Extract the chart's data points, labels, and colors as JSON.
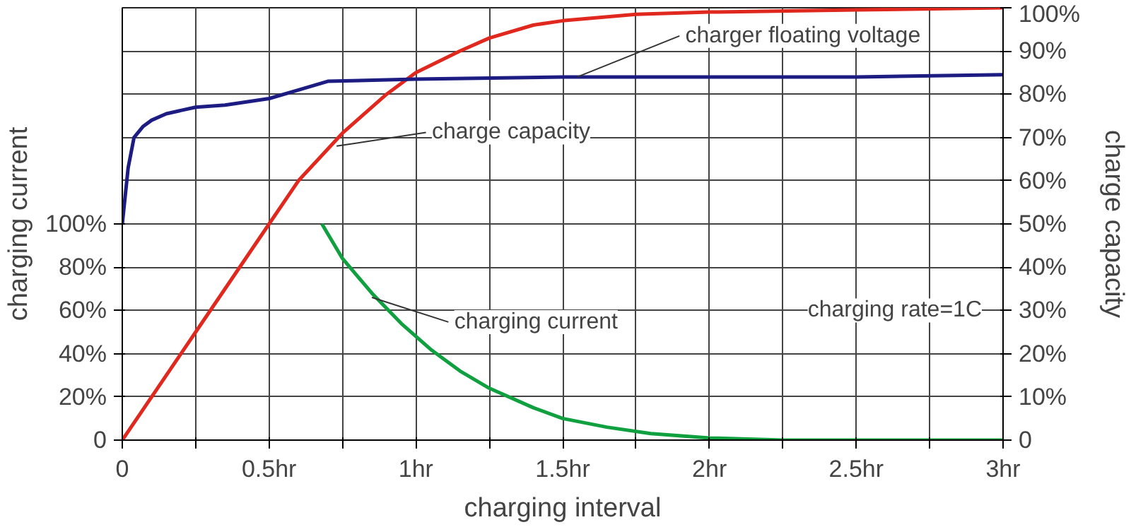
{
  "chart_data": {
    "type": "line",
    "xlabel": "charging interval",
    "ylabel": "charging current",
    "y2label": "charge capacity",
    "xlim": [
      0,
      3
    ],
    "xticks": [
      0,
      {
        "value": 0.25,
        "label": null
      },
      {
        "value": 0.5,
        "label": "0.5hr"
      },
      {
        "value": 0.75,
        "label": null
      },
      {
        "value": 1,
        "label": "1hr"
      },
      {
        "value": 1.25,
        "label": null
      },
      {
        "value": 1.5,
        "label": "1.5hr"
      },
      {
        "value": 1.75,
        "label": null
      },
      {
        "value": 2,
        "label": "2hr"
      },
      {
        "value": 2.25,
        "label": null
      },
      {
        "value": 2.5,
        "label": "2.5hr"
      },
      {
        "value": 2.75,
        "label": null
      },
      {
        "value": 3,
        "label": "3hr"
      }
    ],
    "ylim": [
      0,
      200
    ],
    "yticks": [
      0,
      {
        "value": 20,
        "label": "20%"
      },
      {
        "value": 40,
        "label": "40%"
      },
      {
        "value": 60,
        "label": "60%"
      },
      {
        "value": 80,
        "label": "80%"
      },
      {
        "value": 100,
        "label": "100%"
      }
    ],
    "y2lim": [
      0,
      100
    ],
    "y2ticks": [
      0,
      {
        "value": 10,
        "label": "10%"
      },
      {
        "value": 20,
        "label": "20%"
      },
      {
        "value": 30,
        "label": "30%"
      },
      {
        "value": 40,
        "label": "40%"
      },
      {
        "value": 50,
        "label": "50%"
      },
      {
        "value": 60,
        "label": "60%"
      },
      {
        "value": 70,
        "label": "70%"
      },
      {
        "value": 80,
        "label": "80%"
      },
      {
        "value": 90,
        "label": "90%"
      },
      {
        "value": 100,
        "label": "100%"
      }
    ],
    "series": [
      {
        "axis": "y2",
        "color": "#e0281e",
        "x": [
          0,
          0.25,
          0.5,
          0.6,
          0.75,
          0.9,
          1,
          1.15,
          1.25,
          1.4,
          1.5,
          1.75,
          2,
          2.5,
          3
        ],
        "values": [
          0,
          25,
          50,
          60,
          71,
          80,
          85,
          90,
          93,
          96,
          97,
          98.5,
          99,
          99.5,
          100
        ]
      },
      {
        "axis": "y2",
        "color": "#1c1c82",
        "x": [
          0,
          0.02,
          0.04,
          0.07,
          0.1,
          0.15,
          0.25,
          0.35,
          0.5,
          0.6,
          0.7,
          1,
          1.5,
          2,
          2.5,
          3
        ],
        "values": [
          50,
          63,
          70,
          72.5,
          74,
          75.5,
          77,
          77.5,
          79,
          81,
          83,
          83.5,
          84,
          84,
          84,
          84.5
        ]
      },
      {
        "axis": "y",
        "color": "#10a040",
        "x": [
          0.68,
          0.75,
          0.85,
          0.95,
          1.05,
          1.15,
          1.25,
          1.4,
          1.5,
          1.65,
          1.8,
          2,
          2.25,
          2.5,
          3
        ],
        "values": [
          100,
          84,
          68,
          54,
          42,
          32,
          24,
          15,
          10,
          6,
          3,
          1,
          0,
          0,
          0
        ]
      }
    ],
    "annotations": [
      {
        "text": "charge capacity",
        "x": 0.73,
        "y": 136
      },
      {
        "text": "charger floating voltage",
        "x": 1.55,
        "y": 168
      },
      {
        "text": "charging current",
        "x": 0.85,
        "y": 66
      },
      "charging rate=1C"
    ],
    "grid": true,
    "line_style": "solid"
  }
}
